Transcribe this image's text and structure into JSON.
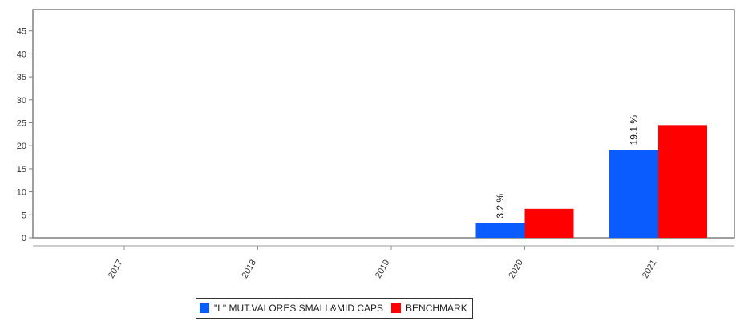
{
  "chart_data": {
    "type": "bar",
    "categories": [
      "2017",
      "2018",
      "2019",
      "2020",
      "2021"
    ],
    "series": [
      {
        "name": "\"L\" MUT.VALORES SMALL&MID CAPS",
        "color": "#0a5cff",
        "values": [
          null,
          null,
          null,
          3.2,
          19.1
        ],
        "data_labels": [
          "",
          "",
          "",
          "3.2 %",
          "19.1 %"
        ]
      },
      {
        "name": "BENCHMARK",
        "color": "#ff0000",
        "values": [
          null,
          null,
          null,
          6.3,
          24.5
        ],
        "data_labels": [
          "",
          "",
          "",
          "",
          ""
        ]
      }
    ],
    "ylim": [
      0,
      48
    ],
    "yticks": [
      0,
      5,
      10,
      15,
      20,
      25,
      30,
      35,
      40,
      45
    ],
    "grid": false,
    "legend_position": "bottom-center",
    "title": "",
    "xlabel": "",
    "ylabel": ""
  }
}
